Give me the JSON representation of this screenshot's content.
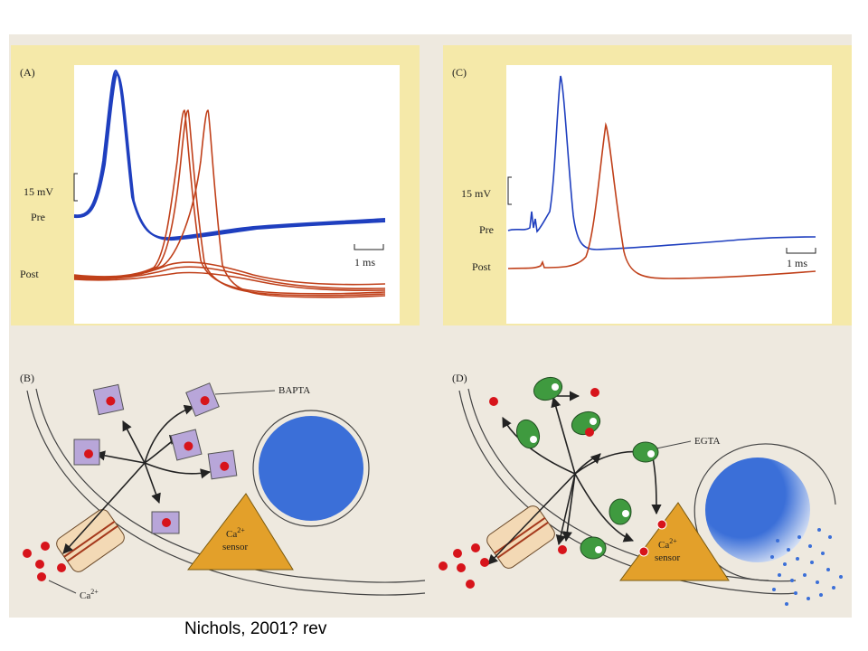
{
  "panels": {
    "A": {
      "label": "(A)",
      "scale_v": "15 mV",
      "pre": "Pre",
      "post": "Post",
      "scale_t": "1 ms"
    },
    "C": {
      "label": "(C)",
      "scale_v": "15 mV",
      "pre": "Pre",
      "post": "Post",
      "scale_t": "1 ms"
    },
    "B": {
      "label": "(B)",
      "chelator": "BAPTA",
      "ion": "Ca",
      "ion_sup": "2+",
      "sensor_line1": "Ca",
      "sensor_sup": "2+",
      "sensor_line2": "sensor"
    },
    "D": {
      "label": "(D)",
      "chelator": "EGTA",
      "sensor_line1": "Ca",
      "sensor_sup": "2+",
      "sensor_line2": "sensor"
    }
  },
  "caption": "Nichols, 2001? rev",
  "colors": {
    "pre_trace": "#1f3fbf",
    "post_trace": "#c0401a",
    "panel_bg": "#f5e9a9",
    "vesicle": "#3b6fd8",
    "sensor": "#e3a02a",
    "ca_ion": "#d7141b",
    "bapta": "#b8a6d9",
    "egta": "#3f9a3f"
  }
}
